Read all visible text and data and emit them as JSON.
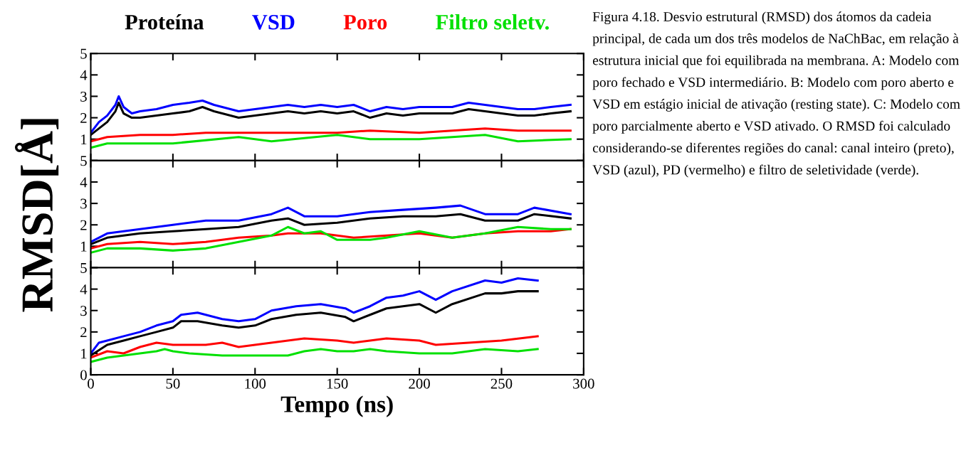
{
  "chart_data": [
    {
      "type": "line",
      "xlim": [
        0,
        300
      ],
      "xticks": [
        0,
        50,
        100,
        150,
        200,
        250,
        300
      ],
      "ylim": [
        0,
        5
      ],
      "yticks": [
        {
          "value": 0,
          "label": null
        },
        1,
        2,
        3,
        4,
        5
      ],
      "tick_labels": "y",
      "legend": "top",
      "grid": false,
      "annotations": [
        "Figura 4.18. Desvio estrutural (RMSD) dos átomos da cadeia principal, de cada um dos três modelos de NaChBac, em relação à estrutura inicial que foi equilibrada na membrana. A: Modelo com poro fechado e VSD intermediário. B: Modelo com poro aberto e VSD em estágio inicial de ativação (resting state). C: Modelo com poro parcialmente aberto e VSD ativado. O RMSD foi calculado considerando-se diferentes regiões do canal: canal inteiro (preto), VSD (azul), PD (vermelho) e filtro de seletividade (verde)."
      ],
      "series": [
        {
          "name": "Proteína",
          "color": "#000000",
          "x": [
            0,
            5,
            10,
            15,
            17,
            20,
            25,
            30,
            40,
            50,
            60,
            68,
            75,
            80,
            90,
            100,
            110,
            120,
            130,
            140,
            150,
            160,
            170,
            180,
            190,
            200,
            210,
            220,
            230,
            240,
            250,
            260,
            270,
            280,
            292
          ],
          "values": [
            1.2,
            1.5,
            1.8,
            2.3,
            2.7,
            2.2,
            2.0,
            2.0,
            2.1,
            2.2,
            2.3,
            2.5,
            2.3,
            2.2,
            2.0,
            2.1,
            2.2,
            2.3,
            2.2,
            2.3,
            2.2,
            2.3,
            2.0,
            2.2,
            2.1,
            2.2,
            2.2,
            2.2,
            2.4,
            2.3,
            2.2,
            2.1,
            2.1,
            2.2,
            2.3
          ]
        },
        {
          "name": "VSD",
          "color": "#0000ff",
          "x": [
            0,
            5,
            10,
            15,
            17,
            20,
            25,
            30,
            40,
            50,
            60,
            68,
            75,
            80,
            90,
            100,
            110,
            120,
            130,
            140,
            150,
            160,
            170,
            180,
            190,
            200,
            210,
            220,
            230,
            240,
            250,
            260,
            270,
            280,
            292
          ],
          "values": [
            1.3,
            1.8,
            2.1,
            2.6,
            3.0,
            2.5,
            2.2,
            2.3,
            2.4,
            2.6,
            2.7,
            2.8,
            2.6,
            2.5,
            2.3,
            2.4,
            2.5,
            2.6,
            2.5,
            2.6,
            2.5,
            2.6,
            2.3,
            2.5,
            2.4,
            2.5,
            2.5,
            2.5,
            2.7,
            2.6,
            2.5,
            2.4,
            2.4,
            2.5,
            2.6
          ]
        },
        {
          "name": "Poro",
          "color": "#ff0000",
          "x": [
            0,
            10,
            30,
            50,
            70,
            100,
            130,
            150,
            170,
            200,
            240,
            260,
            292
          ],
          "values": [
            0.9,
            1.1,
            1.2,
            1.2,
            1.3,
            1.3,
            1.3,
            1.3,
            1.4,
            1.3,
            1.5,
            1.4,
            1.4
          ]
        },
        {
          "name": "Filtro seletv.",
          "color": "#00e000",
          "x": [
            0,
            10,
            50,
            90,
            110,
            150,
            170,
            200,
            240,
            260,
            292
          ],
          "values": [
            0.6,
            0.8,
            0.8,
            1.1,
            0.9,
            1.2,
            1.0,
            1.0,
            1.2,
            0.9,
            1.0
          ]
        }
      ]
    },
    {
      "type": "line",
      "xlim": [
        0,
        300
      ],
      "xticks": [
        0,
        50,
        100,
        150,
        200,
        250,
        300
      ],
      "ylim": [
        0,
        5
      ],
      "yticks": [
        {
          "value": 0,
          "label": null
        },
        1,
        2,
        3,
        4,
        5
      ],
      "tick_labels": "y",
      "grid": false,
      "ylabel": "RMSD[Å]",
      "series": [
        {
          "color": "#000000",
          "x": [
            0,
            10,
            30,
            50,
            70,
            90,
            110,
            120,
            130,
            150,
            170,
            190,
            210,
            225,
            240,
            260,
            270,
            292
          ],
          "values": [
            1.1,
            1.4,
            1.6,
            1.7,
            1.8,
            1.9,
            2.2,
            2.3,
            2.0,
            2.1,
            2.3,
            2.4,
            2.4,
            2.5,
            2.2,
            2.2,
            2.5,
            2.3
          ]
        },
        {
          "color": "#0000ff",
          "x": [
            0,
            10,
            30,
            50,
            70,
            90,
            110,
            120,
            130,
            150,
            170,
            190,
            210,
            225,
            240,
            260,
            270,
            292
          ],
          "values": [
            1.2,
            1.6,
            1.8,
            2.0,
            2.2,
            2.2,
            2.5,
            2.8,
            2.4,
            2.4,
            2.6,
            2.7,
            2.8,
            2.9,
            2.5,
            2.5,
            2.8,
            2.5
          ]
        },
        {
          "color": "#ff0000",
          "x": [
            0,
            10,
            30,
            50,
            70,
            90,
            110,
            120,
            140,
            160,
            180,
            200,
            220,
            240,
            260,
            280,
            292
          ],
          "values": [
            0.9,
            1.1,
            1.2,
            1.1,
            1.2,
            1.4,
            1.5,
            1.6,
            1.6,
            1.4,
            1.5,
            1.6,
            1.4,
            1.6,
            1.7,
            1.7,
            1.8
          ]
        },
        {
          "color": "#00e000",
          "x": [
            0,
            10,
            30,
            50,
            70,
            90,
            110,
            120,
            130,
            140,
            150,
            170,
            180,
            200,
            220,
            240,
            260,
            280,
            292
          ],
          "values": [
            0.7,
            0.9,
            0.9,
            0.8,
            0.9,
            1.2,
            1.5,
            1.9,
            1.6,
            1.7,
            1.3,
            1.3,
            1.4,
            1.7,
            1.4,
            1.6,
            1.9,
            1.8,
            1.8
          ]
        }
      ]
    },
    {
      "type": "line",
      "xlim": [
        0,
        300
      ],
      "xticks": [
        0,
        50,
        100,
        150,
        200,
        250,
        300
      ],
      "ylim": [
        0,
        5
      ],
      "yticks": [
        0,
        1,
        2,
        3,
        4,
        5
      ],
      "grid": false,
      "xlabel": "Tempo (ns)",
      "series": [
        {
          "color": "#000000",
          "x": [
            0,
            10,
            20,
            30,
            40,
            50,
            55,
            65,
            80,
            90,
            100,
            110,
            125,
            140,
            155,
            160,
            170,
            180,
            190,
            200,
            210,
            220,
            240,
            250,
            260,
            272
          ],
          "values": [
            0.9,
            1.4,
            1.6,
            1.8,
            2.0,
            2.2,
            2.5,
            2.5,
            2.3,
            2.2,
            2.3,
            2.6,
            2.8,
            2.9,
            2.7,
            2.5,
            2.8,
            3.1,
            3.2,
            3.3,
            2.9,
            3.3,
            3.8,
            3.8,
            3.9,
            3.9
          ]
        },
        {
          "color": "#0000ff",
          "x": [
            0,
            5,
            10,
            20,
            30,
            40,
            50,
            55,
            65,
            80,
            90,
            100,
            110,
            125,
            140,
            155,
            160,
            170,
            180,
            190,
            200,
            210,
            220,
            240,
            250,
            260,
            272
          ],
          "values": [
            1.0,
            1.5,
            1.6,
            1.8,
            2.0,
            2.3,
            2.5,
            2.8,
            2.9,
            2.6,
            2.5,
            2.6,
            3.0,
            3.2,
            3.3,
            3.1,
            2.9,
            3.2,
            3.6,
            3.7,
            3.9,
            3.5,
            3.9,
            4.4,
            4.3,
            4.5,
            4.4
          ]
        },
        {
          "color": "#ff0000",
          "x": [
            0,
            10,
            20,
            30,
            40,
            50,
            70,
            80,
            90,
            100,
            120,
            130,
            150,
            160,
            170,
            180,
            200,
            210,
            230,
            250,
            272
          ],
          "values": [
            0.8,
            1.1,
            1.0,
            1.3,
            1.5,
            1.4,
            1.4,
            1.5,
            1.3,
            1.4,
            1.6,
            1.7,
            1.6,
            1.5,
            1.6,
            1.7,
            1.6,
            1.4,
            1.5,
            1.6,
            1.8
          ]
        },
        {
          "color": "#00e000",
          "x": [
            0,
            10,
            20,
            30,
            40,
            45,
            50,
            60,
            80,
            100,
            120,
            130,
            140,
            150,
            160,
            170,
            180,
            200,
            220,
            240,
            260,
            272
          ],
          "values": [
            0.6,
            0.8,
            0.9,
            1.0,
            1.1,
            1.2,
            1.1,
            1.0,
            0.9,
            0.9,
            0.9,
            1.1,
            1.2,
            1.1,
            1.1,
            1.2,
            1.1,
            1.0,
            1.0,
            1.2,
            1.1,
            1.2
          ]
        }
      ]
    }
  ]
}
